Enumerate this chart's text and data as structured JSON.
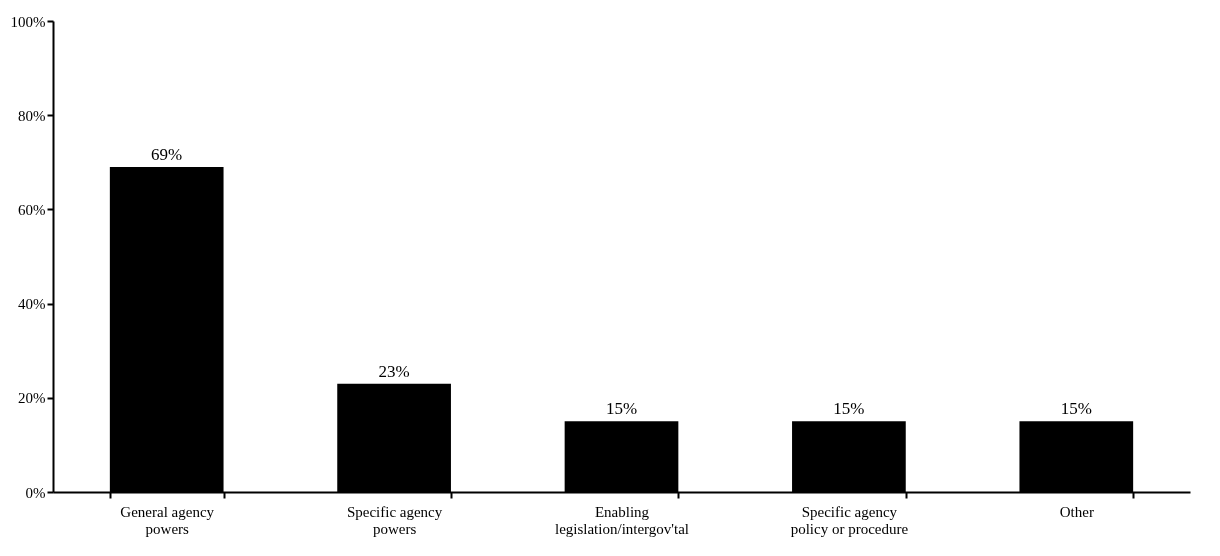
{
  "chart_data": {
    "type": "bar",
    "categories": [
      "General agency powers",
      "Specific agency powers",
      "Enabling legislation/intergov'tal",
      "Specific agency policy or procedure",
      "Other"
    ],
    "values": [
      69,
      23,
      15,
      15,
      15
    ],
    "color": "#000000",
    "value_labels": [
      "69%",
      "23%",
      "15%",
      "15%",
      "15%"
    ],
    "ylim": [
      0,
      100
    ],
    "yticks": [
      {
        "value": 0,
        "label": "0%"
      },
      {
        "value": 20,
        "label": "20%"
      },
      {
        "value": 40,
        "label": "40%"
      },
      {
        "value": 60,
        "label": "60%"
      },
      {
        "value": 80,
        "label": "80%"
      },
      {
        "value": 100,
        "label": "100%"
      }
    ],
    "grid": false
  }
}
